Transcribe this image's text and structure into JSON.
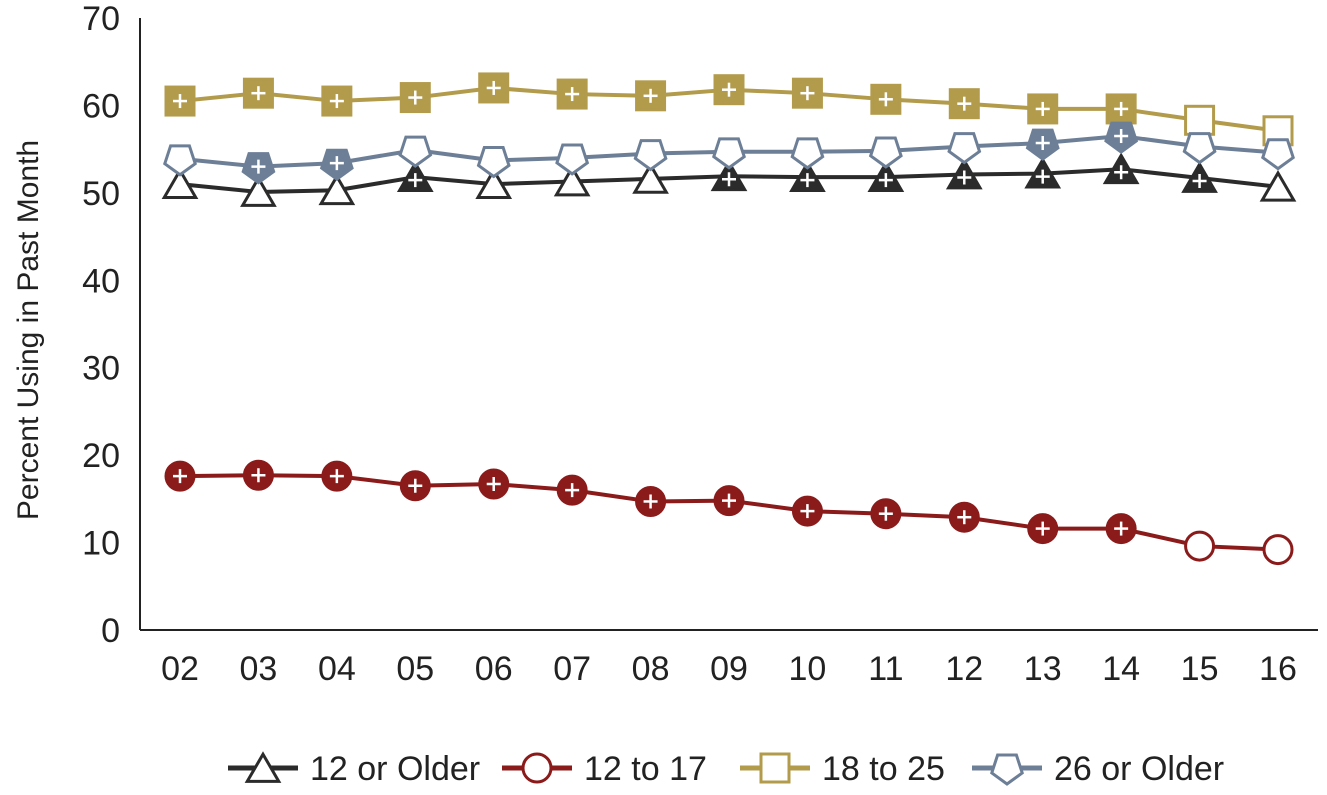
{
  "chart_data": {
    "type": "line",
    "title": "",
    "xlabel": "",
    "ylabel": "Percent Using in Past Month",
    "categories": [
      "02",
      "03",
      "04",
      "05",
      "06",
      "07",
      "08",
      "09",
      "10",
      "11",
      "12",
      "13",
      "14",
      "15",
      "16"
    ],
    "ylim": [
      0,
      70
    ],
    "yticks": [
      0,
      10,
      20,
      30,
      40,
      50,
      60,
      70
    ],
    "grid": false,
    "legend_position": "bottom",
    "series": [
      {
        "name": "12 or Older",
        "marker": "triangle",
        "color": "#2b2b2b",
        "values": [
          51.0,
          50.1,
          50.3,
          51.8,
          51.0,
          51.3,
          51.6,
          51.9,
          51.8,
          51.8,
          52.1,
          52.2,
          52.7,
          51.7,
          50.7
        ],
        "significant": [
          false,
          false,
          false,
          true,
          false,
          false,
          false,
          true,
          true,
          true,
          true,
          true,
          true,
          true,
          false
        ]
      },
      {
        "name": "12 to 17",
        "marker": "circle",
        "color": "#8b1a1a",
        "values": [
          17.6,
          17.7,
          17.6,
          16.5,
          16.7,
          16.0,
          14.7,
          14.8,
          13.6,
          13.3,
          12.9,
          11.6,
          11.6,
          9.6,
          9.2
        ],
        "significant": [
          true,
          true,
          true,
          true,
          true,
          true,
          true,
          true,
          true,
          true,
          true,
          true,
          true,
          false,
          false
        ]
      },
      {
        "name": "18 to 25",
        "marker": "square",
        "color": "#b39b4c",
        "values": [
          60.5,
          61.4,
          60.5,
          60.9,
          62.0,
          61.3,
          61.1,
          61.8,
          61.4,
          60.7,
          60.2,
          59.6,
          59.6,
          58.3,
          57.1
        ],
        "significant": [
          true,
          true,
          true,
          true,
          true,
          true,
          true,
          true,
          true,
          true,
          true,
          true,
          true,
          false,
          false
        ]
      },
      {
        "name": "26 or Older",
        "marker": "pentagon",
        "color": "#6d7f97",
        "values": [
          53.9,
          53.0,
          53.4,
          54.9,
          53.7,
          54.0,
          54.5,
          54.7,
          54.7,
          54.8,
          55.3,
          55.7,
          56.5,
          55.3,
          54.6
        ],
        "significant": [
          false,
          true,
          true,
          false,
          false,
          false,
          false,
          false,
          false,
          false,
          false,
          true,
          true,
          false,
          false
        ]
      }
    ]
  }
}
